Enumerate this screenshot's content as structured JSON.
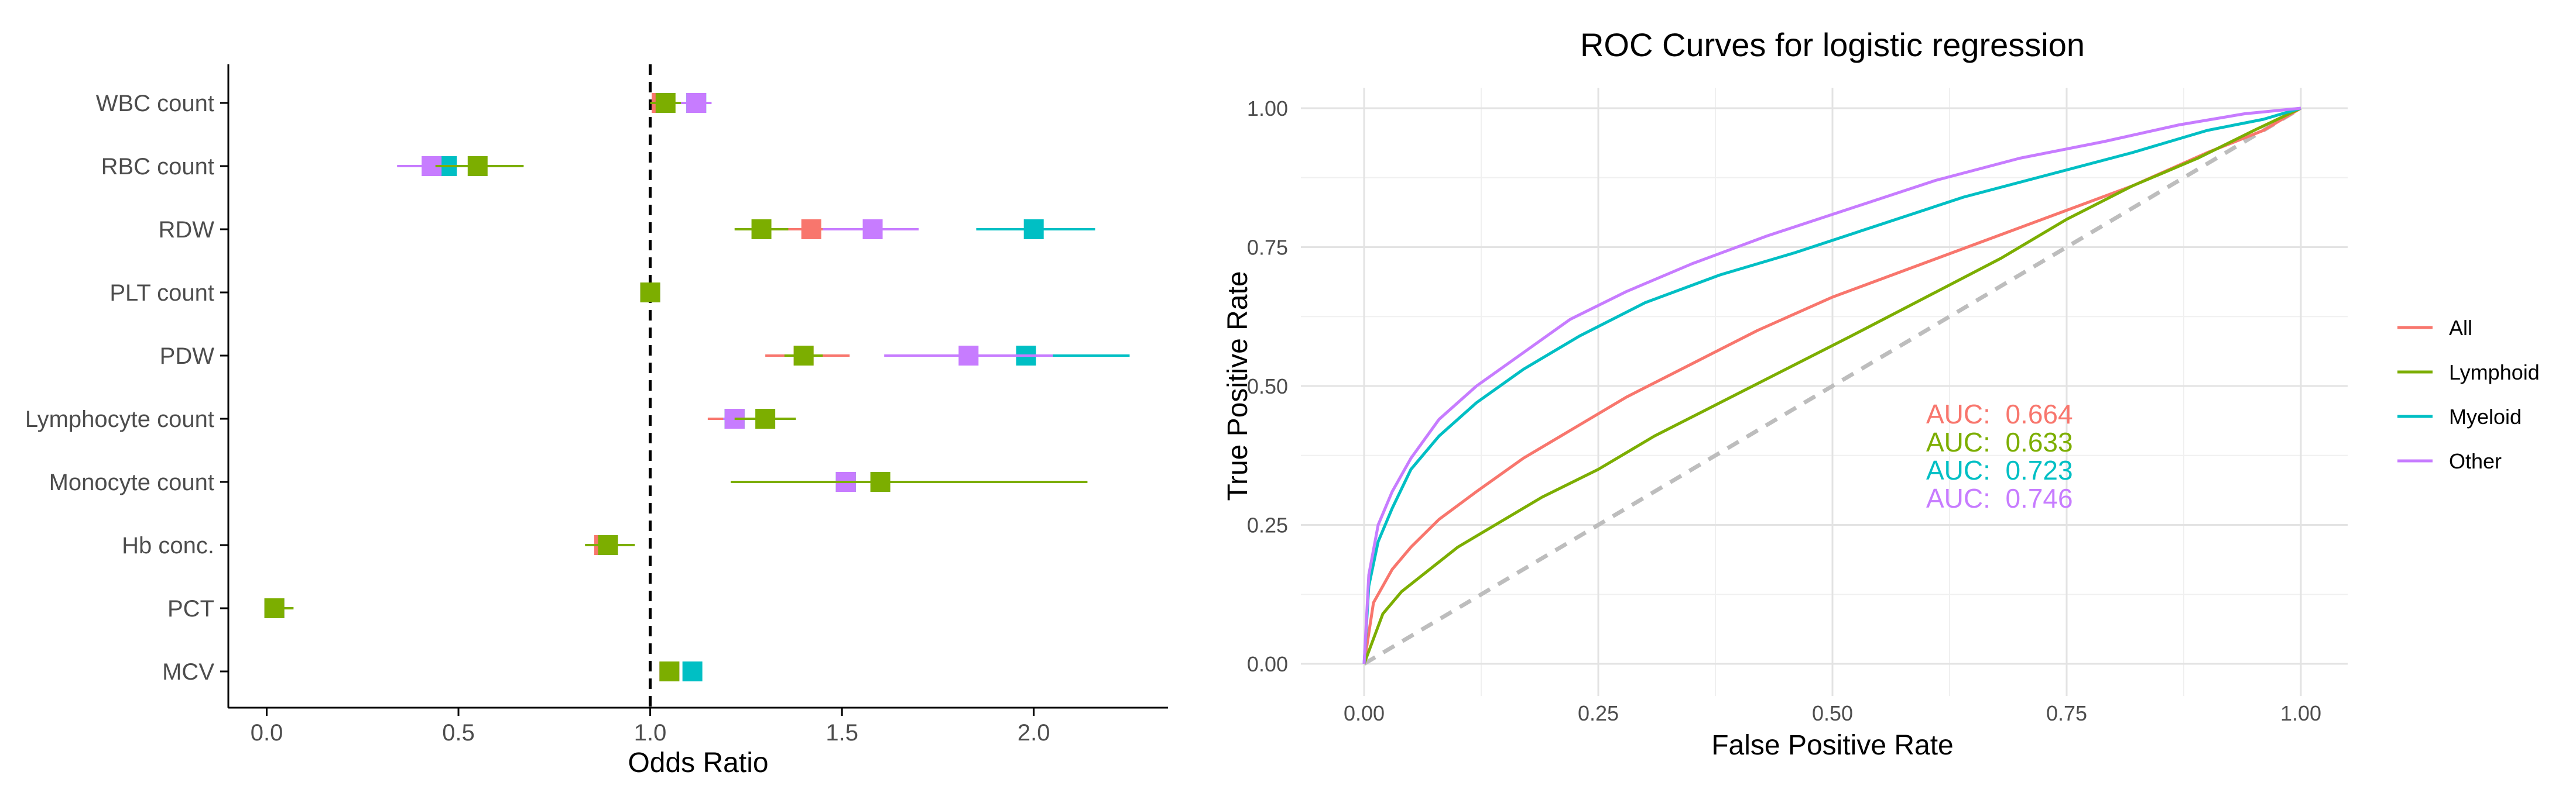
{
  "colors": {
    "All": "#F8766D",
    "Lymphoid": "#7CAE00",
    "Myeloid": "#00BFC4",
    "Other": "#C77CFF"
  },
  "chart_data": [
    {
      "type": "forest",
      "title": "",
      "xlabel": "Odds Ratio",
      "ylabel": "",
      "xlim": [
        -0.1,
        2.35
      ],
      "x_ticks": [
        0.0,
        0.5,
        1.0,
        1.5,
        2.0
      ],
      "x_tick_labels": [
        "0.0",
        "0.5",
        "1.0",
        "1.5",
        "2.0"
      ],
      "reference_line": 1.0,
      "grid": false,
      "categories": [
        "WBC count",
        "RBC count",
        "RDW",
        "PLT count",
        "PDW",
        "Lymphocyte count",
        "Monocyte count",
        "Hb conc.",
        "PCT",
        "MCV"
      ],
      "series": [
        {
          "name": "All",
          "points": [
            {
              "category": "WBC count",
              "or": 1.03,
              "lo": 1.01,
              "hi": 1.05
            },
            {
              "category": "RBC count",
              "or": 0.47,
              "lo": 0.38,
              "hi": 0.56
            },
            {
              "category": "RDW",
              "or": 1.42,
              "lo": 1.35,
              "hi": 1.49
            },
            {
              "category": "PLT count",
              "or": 1.0,
              "lo": 0.99,
              "hi": 1.01
            },
            {
              "category": "PDW",
              "or": 1.4,
              "lo": 1.3,
              "hi": 1.52
            },
            {
              "category": "Lymphocyte count",
              "or": 1.22,
              "lo": 1.15,
              "hi": 1.3
            },
            {
              "category": "Monocyte count",
              "or": 1.51,
              "lo": 1.45,
              "hi": 1.57
            },
            {
              "category": "Hb conc.",
              "or": 0.88,
              "lo": 0.86,
              "hi": 0.9
            },
            {
              "category": "PCT",
              "or": 0.02,
              "lo": 0.01,
              "hi": 0.04
            },
            {
              "category": "MCV",
              "or": 1.05,
              "lo": 1.03,
              "hi": 1.07
            }
          ]
        },
        {
          "name": "Lymphoid",
          "points": [
            {
              "category": "WBC count",
              "or": 1.04,
              "lo": 1.0,
              "hi": 1.08
            },
            {
              "category": "RBC count",
              "or": 0.55,
              "lo": 0.44,
              "hi": 0.67
            },
            {
              "category": "RDW",
              "or": 1.29,
              "lo": 1.22,
              "hi": 1.36
            },
            {
              "category": "PLT count",
              "or": 1.0,
              "lo": 0.99,
              "hi": 1.01
            },
            {
              "category": "PDW",
              "or": 1.4,
              "lo": 1.35,
              "hi": 1.45
            },
            {
              "category": "Lymphocyte count",
              "or": 1.3,
              "lo": 1.22,
              "hi": 1.38
            },
            {
              "category": "Monocyte count",
              "or": 1.6,
              "lo": 1.21,
              "hi": 2.14
            },
            {
              "category": "Hb conc.",
              "or": 0.89,
              "lo": 0.83,
              "hi": 0.96
            },
            {
              "category": "PCT",
              "or": 0.02,
              "lo": 0.0,
              "hi": 0.07
            },
            {
              "category": "MCV",
              "or": 1.05,
              "lo": 1.03,
              "hi": 1.07
            }
          ]
        },
        {
          "name": "Myeloid",
          "points": [
            {
              "category": "WBC count",
              "or": 1.12,
              "lo": 1.1,
              "hi": 1.14
            },
            {
              "category": "RBC count",
              "or": 0.47,
              "lo": 0.44,
              "hi": 0.5
            },
            {
              "category": "RDW",
              "or": 2.0,
              "lo": 1.85,
              "hi": 2.16
            },
            {
              "category": "PLT count",
              "or": 1.0,
              "lo": 0.99,
              "hi": 1.01
            },
            {
              "category": "PDW",
              "or": 1.98,
              "lo": 1.75,
              "hi": 2.25
            },
            {
              "category": "Lymphocyte count",
              "or": 1.22,
              "lo": 1.19,
              "hi": 1.25
            },
            {
              "category": "Monocyte count",
              "or": 1.51,
              "lo": 1.48,
              "hi": 1.54
            },
            {
              "category": "Hb conc.",
              "or": 0.89,
              "lo": 0.87,
              "hi": 0.91
            },
            {
              "category": "PCT",
              "or": 0.02,
              "lo": 0.01,
              "hi": 0.03
            },
            {
              "category": "MCV",
              "or": 1.11,
              "lo": 1.09,
              "hi": 1.13
            }
          ]
        },
        {
          "name": "Other",
          "points": [
            {
              "category": "WBC count",
              "or": 1.12,
              "lo": 1.05,
              "hi": 1.16
            },
            {
              "category": "RBC count",
              "or": 0.43,
              "lo": 0.34,
              "hi": 0.52
            },
            {
              "category": "RDW",
              "or": 1.58,
              "lo": 1.45,
              "hi": 1.7
            },
            {
              "category": "PLT count",
              "or": 1.0,
              "lo": 0.99,
              "hi": 1.01
            },
            {
              "category": "PDW",
              "or": 1.83,
              "lo": 1.61,
              "hi": 2.05
            },
            {
              "category": "Lymphocyte count",
              "or": 1.22,
              "lo": 1.19,
              "hi": 1.25
            },
            {
              "category": "Monocyte count",
              "or": 1.51,
              "lo": 1.48,
              "hi": 1.54
            },
            {
              "category": "Hb conc.",
              "or": 0.89,
              "lo": 0.87,
              "hi": 0.91
            },
            {
              "category": "PCT",
              "or": 0.02,
              "lo": 0.01,
              "hi": 0.03
            },
            {
              "category": "MCV",
              "or": 1.05,
              "lo": 1.03,
              "hi": 1.07
            }
          ]
        }
      ],
      "draw_order": [
        "All",
        "Myeloid",
        "Other",
        "Lymphoid"
      ]
    },
    {
      "type": "line",
      "title": "ROC Curves for logistic regression",
      "xlabel": "False Positive Rate",
      "ylabel": "True Positive Rate",
      "xlim": [
        0,
        1
      ],
      "ylim": [
        0,
        1
      ],
      "x_ticks": [
        0,
        0.25,
        0.5,
        0.75,
        1.0
      ],
      "y_ticks": [
        0,
        0.25,
        0.5,
        0.75,
        1.0
      ],
      "x_tick_labels": [
        "0.00",
        "0.25",
        "0.50",
        "0.75",
        "1.00"
      ],
      "y_tick_labels": [
        "0.00",
        "0.25",
        "0.50",
        "0.75",
        "1.00"
      ],
      "grid": true,
      "legend_position": "right",
      "diagonal_reference": true,
      "series": [
        {
          "name": "All",
          "auc": "AUC:  0.664",
          "x": [
            0,
            0.01,
            0.03,
            0.05,
            0.08,
            0.12,
            0.17,
            0.22,
            0.28,
            0.35,
            0.42,
            0.5,
            0.58,
            0.66,
            0.74,
            0.82,
            0.9,
            0.96,
            1.0
          ],
          "y": [
            0,
            0.11,
            0.17,
            0.21,
            0.26,
            0.31,
            0.37,
            0.42,
            0.48,
            0.54,
            0.6,
            0.66,
            0.71,
            0.76,
            0.81,
            0.86,
            0.92,
            0.96,
            1.0
          ]
        },
        {
          "name": "Lymphoid",
          "auc": "AUC:  0.633",
          "x": [
            0,
            0.02,
            0.04,
            0.07,
            0.1,
            0.14,
            0.19,
            0.25,
            0.31,
            0.38,
            0.45,
            0.52,
            0.6,
            0.68,
            0.75,
            0.82,
            0.89,
            0.95,
            1.0
          ],
          "y": [
            0,
            0.09,
            0.13,
            0.17,
            0.21,
            0.25,
            0.3,
            0.35,
            0.41,
            0.47,
            0.53,
            0.59,
            0.66,
            0.73,
            0.8,
            0.86,
            0.91,
            0.96,
            1.0
          ]
        },
        {
          "name": "Myeloid",
          "auc": "AUC:  0.723",
          "x": [
            0,
            0.005,
            0.015,
            0.03,
            0.05,
            0.08,
            0.12,
            0.17,
            0.23,
            0.3,
            0.38,
            0.46,
            0.55,
            0.64,
            0.73,
            0.82,
            0.9,
            0.96,
            1.0
          ],
          "y": [
            0,
            0.14,
            0.22,
            0.28,
            0.35,
            0.41,
            0.47,
            0.53,
            0.59,
            0.65,
            0.7,
            0.74,
            0.79,
            0.84,
            0.88,
            0.92,
            0.96,
            0.98,
            1.0
          ]
        },
        {
          "name": "Other",
          "auc": "AUC:  0.746",
          "x": [
            0,
            0.005,
            0.015,
            0.03,
            0.05,
            0.08,
            0.12,
            0.17,
            0.22,
            0.28,
            0.35,
            0.43,
            0.52,
            0.61,
            0.7,
            0.79,
            0.87,
            0.94,
            1.0
          ],
          "y": [
            0,
            0.16,
            0.25,
            0.31,
            0.37,
            0.44,
            0.5,
            0.56,
            0.62,
            0.67,
            0.72,
            0.77,
            0.82,
            0.87,
            0.91,
            0.94,
            0.97,
            0.99,
            1.0
          ]
        }
      ]
    }
  ]
}
